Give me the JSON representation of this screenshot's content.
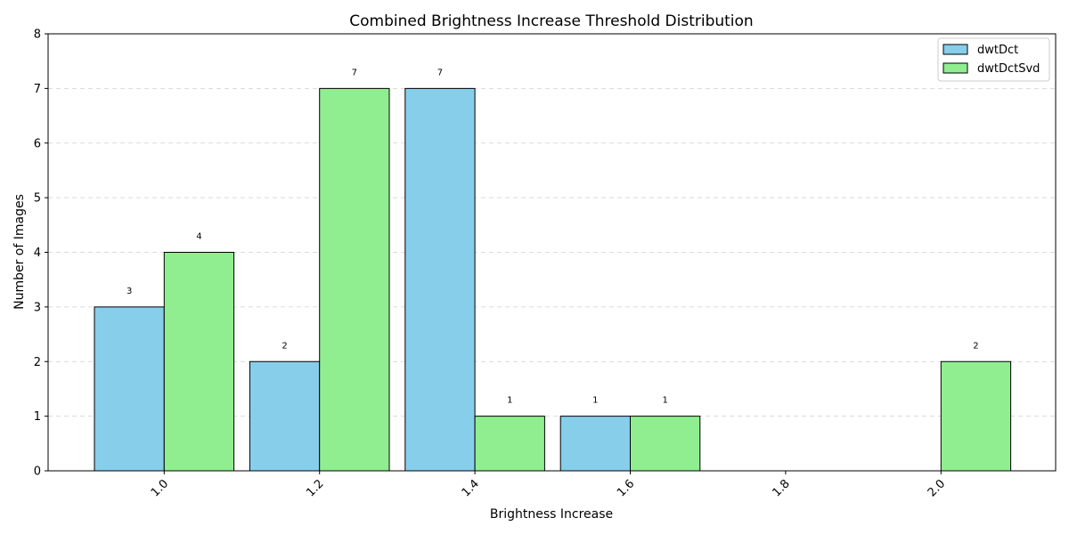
{
  "chart_data": {
    "type": "bar",
    "title": "Combined Brightness Increase Threshold Distribution",
    "xlabel": "Brightness Increase",
    "ylabel": "Number of Images",
    "categories": [
      "1.0",
      "1.2",
      "1.4",
      "1.6",
      "1.8",
      "2.0"
    ],
    "series": [
      {
        "name": "dwtDct",
        "values": [
          3,
          2,
          7,
          1,
          0,
          0
        ],
        "color": "#87CEEB"
      },
      {
        "name": "dwtDctSvd",
        "values": [
          4,
          7,
          1,
          1,
          0,
          2
        ],
        "color": "#90EE90"
      }
    ],
    "ylim": [
      0,
      8
    ],
    "yticks": [
      "0",
      "1",
      "2",
      "3",
      "4",
      "5",
      "6",
      "7",
      "8"
    ],
    "grid": "horizontal-dashed",
    "legend_position": "top-right",
    "edge_color": "#000000"
  }
}
